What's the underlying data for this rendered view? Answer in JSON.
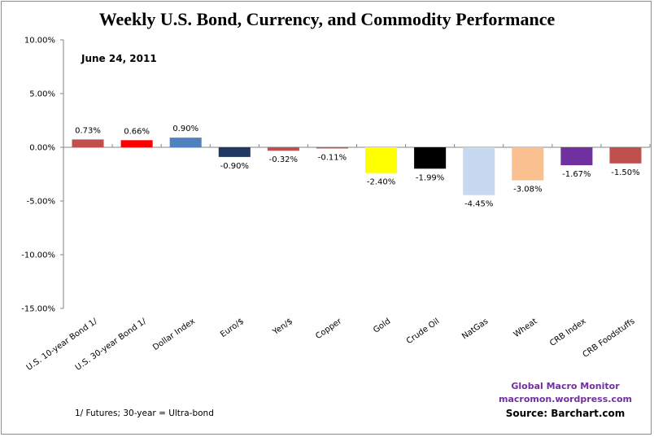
{
  "chart_data": {
    "type": "bar",
    "title": "Weekly U.S. Bond, Currency, and Commodity Performance",
    "subtitle": "June 24, 2011",
    "xlabel": "",
    "ylabel": "",
    "ylim": [
      -15,
      10
    ],
    "yticks": [
      10,
      5,
      0,
      -5,
      -10,
      -15
    ],
    "ytick_labels": [
      "10.00%",
      "5.00%",
      "0.00%",
      "-5.00%",
      "-10.00%",
      "-15.00%"
    ],
    "grid": false,
    "legend": "none",
    "categories": [
      "U.S. 10-year Bond 1/",
      "U.S. 30-year Bond 1/",
      "Dollar Index",
      "Euro/$",
      "Yen/$",
      "Copper",
      "Gold",
      "Crude Oil",
      "NatGas",
      "Wheat",
      "CRB Index",
      "CRB Foodstuffs"
    ],
    "values": [
      0.73,
      0.66,
      0.9,
      -0.9,
      -0.32,
      -0.11,
      -2.4,
      -1.99,
      -4.45,
      -3.08,
      -1.67,
      -1.5
    ],
    "value_labels": [
      "0.73%",
      "0.66%",
      "0.90%",
      "-0.90%",
      "-0.32%",
      "-0.11%",
      "-2.40%",
      "-1.99%",
      "-4.45%",
      "-3.08%",
      "-1.67%",
      "-1.50%"
    ],
    "colors": [
      "#c0504d",
      "#ff0000",
      "#4f81bd",
      "#1f3864",
      "#c0504d",
      "#c0504d",
      "#ffff00",
      "#000000",
      "#c6d9f1",
      "#fac090",
      "#7030a0",
      "#c0504d"
    ]
  },
  "footnote": "1/ Futures; 30-year = Ultra-bond",
  "credits": {
    "line1": "Global Macro Monitor",
    "line2": "macromon.wordpress.com",
    "source": "Source: Barchart.com"
  }
}
